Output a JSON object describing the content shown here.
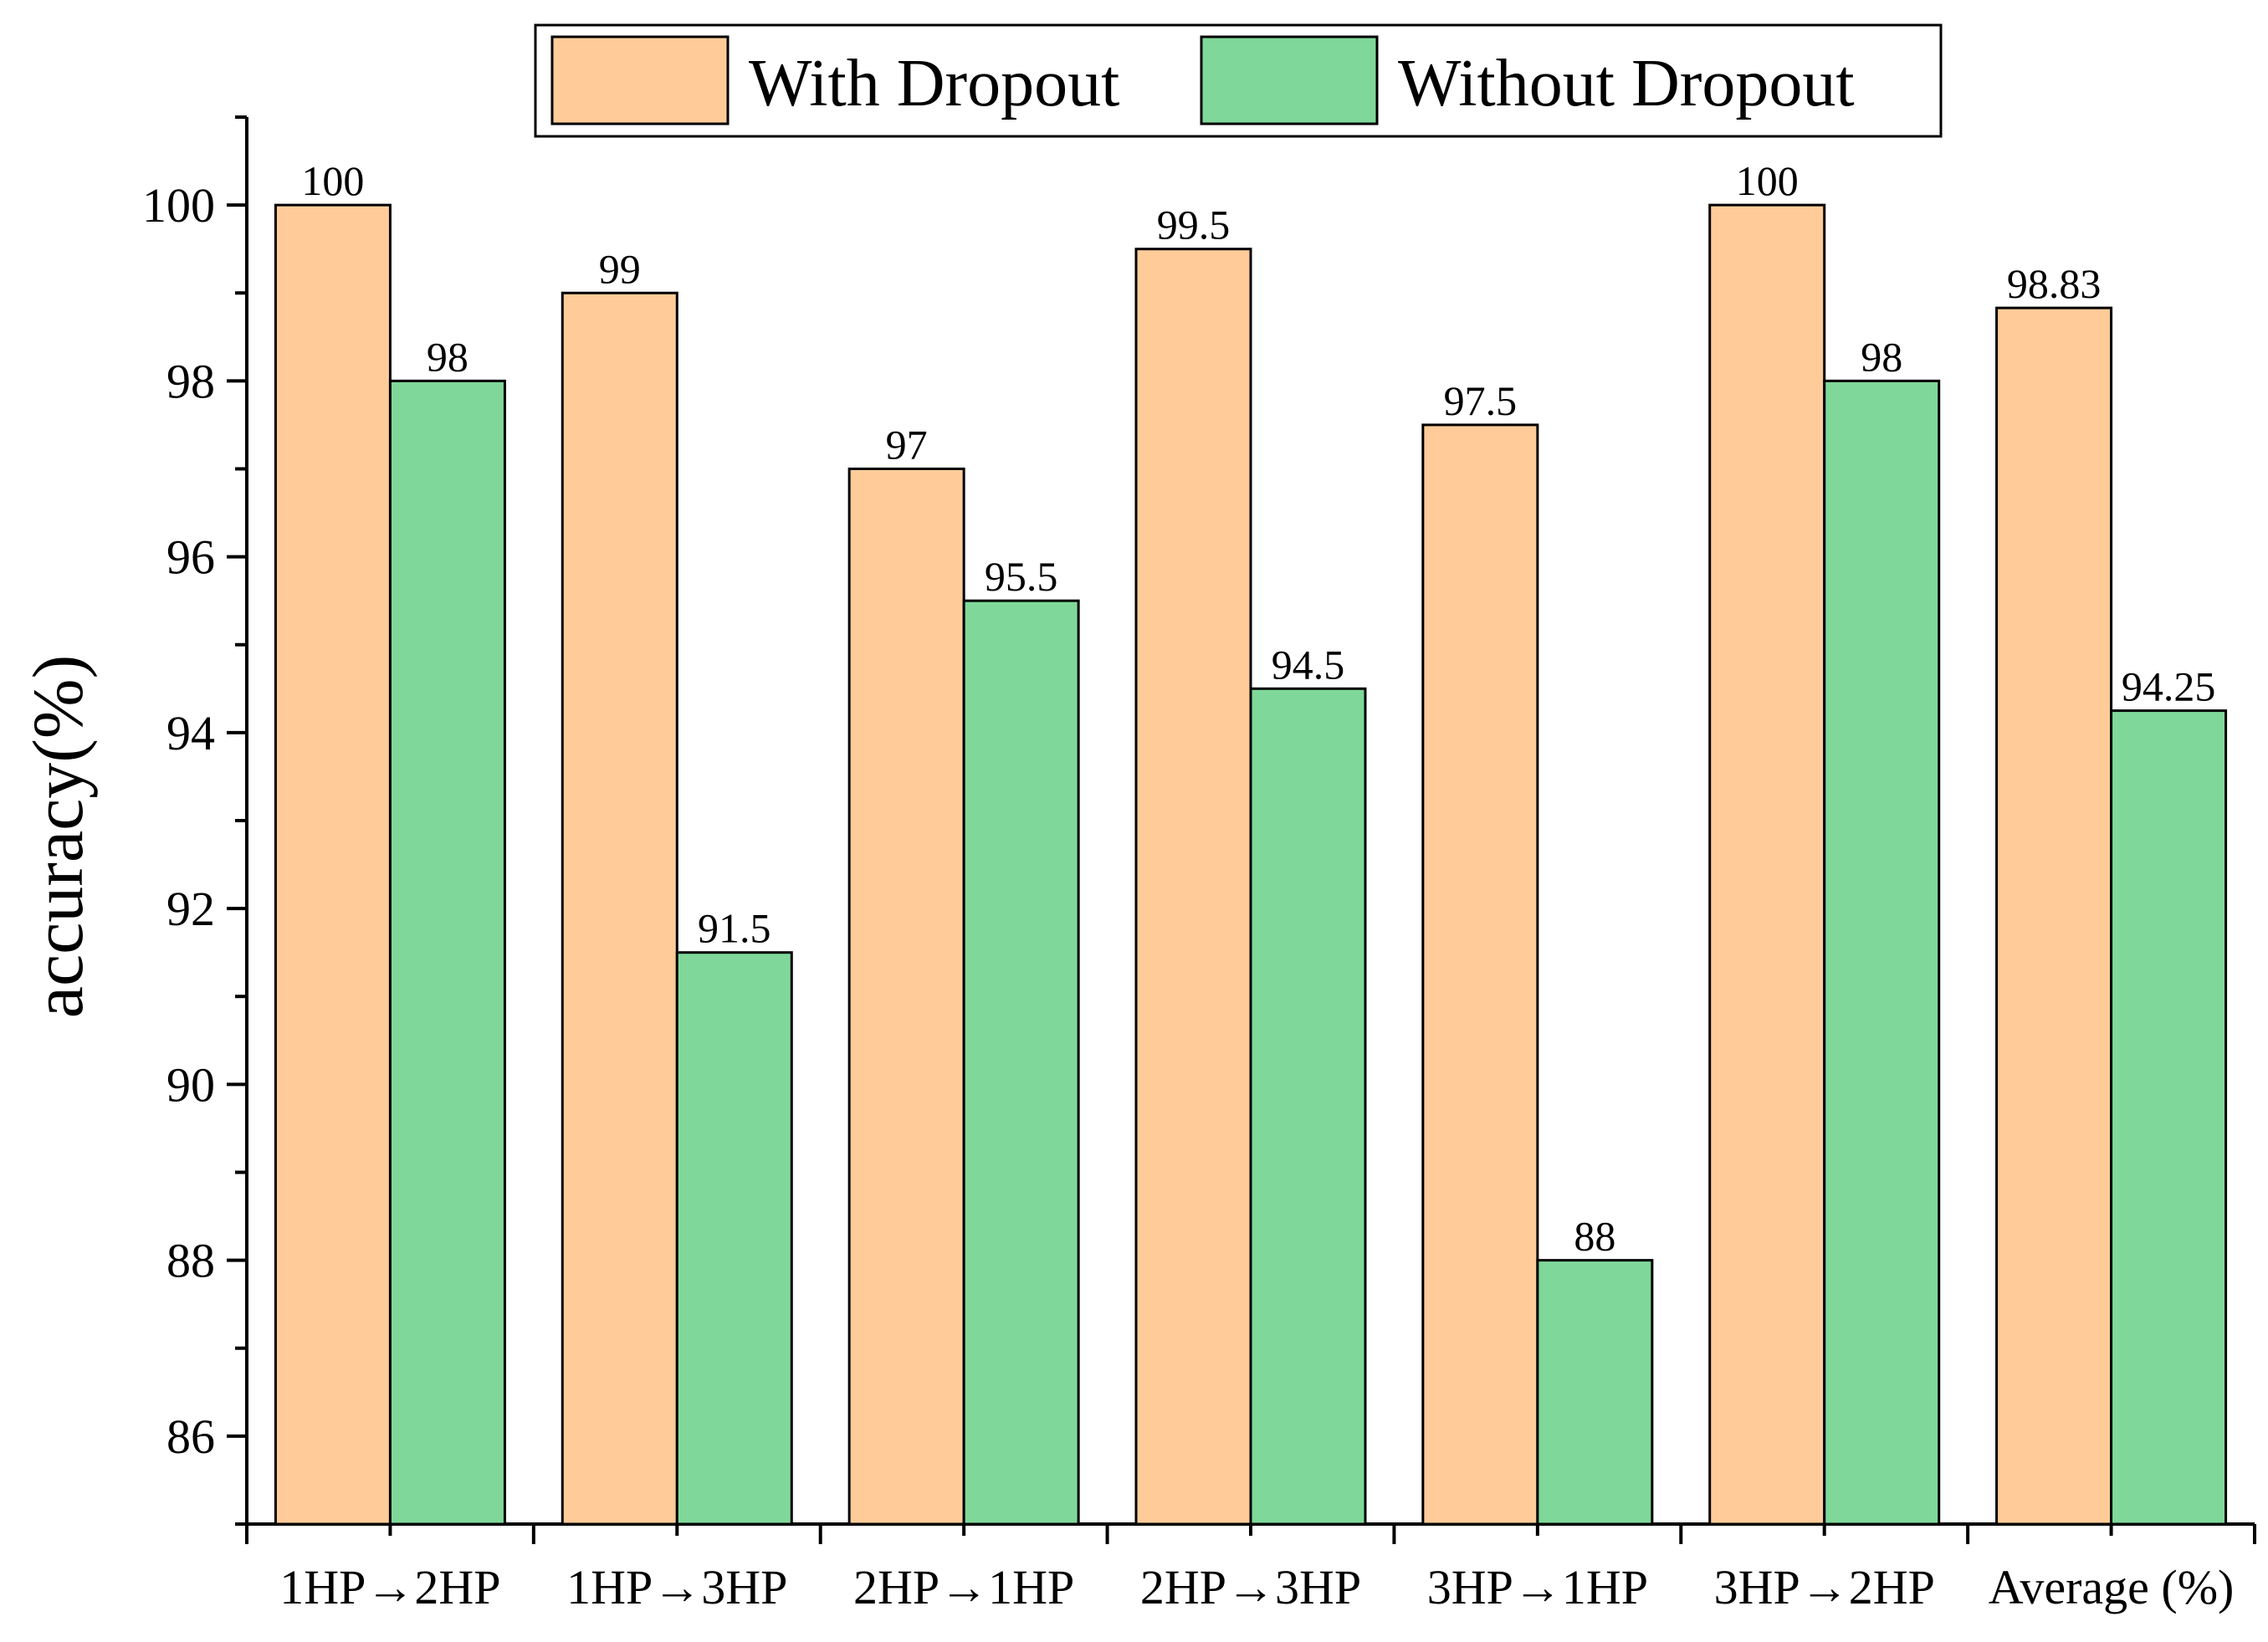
{
  "chart_data": {
    "type": "bar",
    "categories": [
      "1HP→2HP",
      "1HP→3HP",
      "2HP→1HP",
      "2HP→3HP",
      "3HP→1HP",
      "3HP→2HP",
      "Average (%)"
    ],
    "series": [
      {
        "name": "With Dropout",
        "values": [
          100,
          99,
          97,
          99.5,
          97.5,
          100,
          98.83
        ],
        "labels": [
          "100",
          "99",
          "97",
          "99.5",
          "97.5",
          "100",
          "98.83"
        ],
        "color": "#FFCC99"
      },
      {
        "name": "Without Dropout",
        "values": [
          98,
          91.5,
          95.5,
          94.5,
          88,
          98,
          94.25
        ],
        "labels": [
          "98",
          "91.5",
          "95.5",
          "94.5",
          "88",
          "98",
          "94.25"
        ],
        "color": "#7FD89A"
      }
    ],
    "ylabel": "accuracy(%)",
    "xlabel": "",
    "ylim": [
      85,
      101
    ],
    "yticks": [
      86,
      88,
      90,
      92,
      94,
      96,
      98,
      100
    ],
    "ytick_labels": [
      "86",
      "88",
      "90",
      "92",
      "94",
      "96",
      "98",
      "100"
    ],
    "grid": false,
    "legend_position": "top-center"
  }
}
